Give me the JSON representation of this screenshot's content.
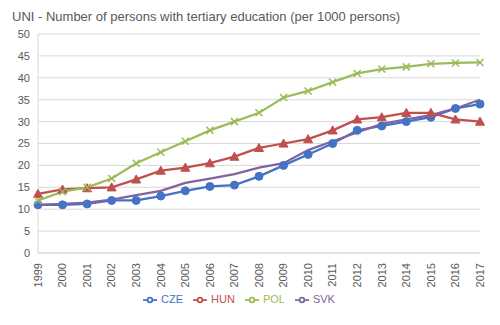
{
  "chart_data": {
    "type": "line",
    "title": "UNI - Number of persons with tertiary education (per 1000 persons)",
    "categories": [
      "1999",
      "2000",
      "2001",
      "2002",
      "2003",
      "2004",
      "2005",
      "2006",
      "2007",
      "2008",
      "2009",
      "2010",
      "2011",
      "2012",
      "2013",
      "2014",
      "2015",
      "2016",
      "2017"
    ],
    "series": [
      {
        "name": "CZE",
        "color": "#4472c4",
        "marker": "circle",
        "values": [
          11,
          11,
          11.2,
          12,
          12,
          13,
          14.2,
          15.2,
          15.5,
          17.5,
          20,
          22.5,
          25,
          28,
          29,
          30,
          31,
          33,
          34
        ]
      },
      {
        "name": "HUN",
        "color": "#c0504d",
        "marker": "triangle",
        "values": [
          13.5,
          14.5,
          14.8,
          15,
          16.8,
          18.8,
          19.5,
          20.5,
          22,
          24,
          25,
          26,
          28,
          30.5,
          31,
          32,
          32,
          30.5,
          30
        ]
      },
      {
        "name": "POL",
        "color": "#9bbb59",
        "marker": "cross",
        "values": [
          12,
          14,
          15,
          17,
          20.5,
          23,
          25.5,
          28,
          30,
          32,
          35.5,
          37,
          39,
          41,
          42,
          42.5,
          43.2,
          43.4,
          43.5
        ]
      },
      {
        "name": "SVK",
        "color": "#8064a2",
        "marker": "none",
        "values": [
          11,
          11.2,
          11.5,
          12.2,
          13.2,
          14.2,
          16,
          17,
          18,
          19.5,
          20.5,
          23.5,
          25.5,
          27.5,
          29.5,
          30.5,
          31.5,
          33,
          35
        ]
      }
    ],
    "ylim": [
      0,
      50
    ],
    "yticks": [
      0,
      5,
      10,
      15,
      20,
      25,
      30,
      35,
      40,
      45,
      50
    ],
    "grid": true,
    "legend": "bottom"
  }
}
